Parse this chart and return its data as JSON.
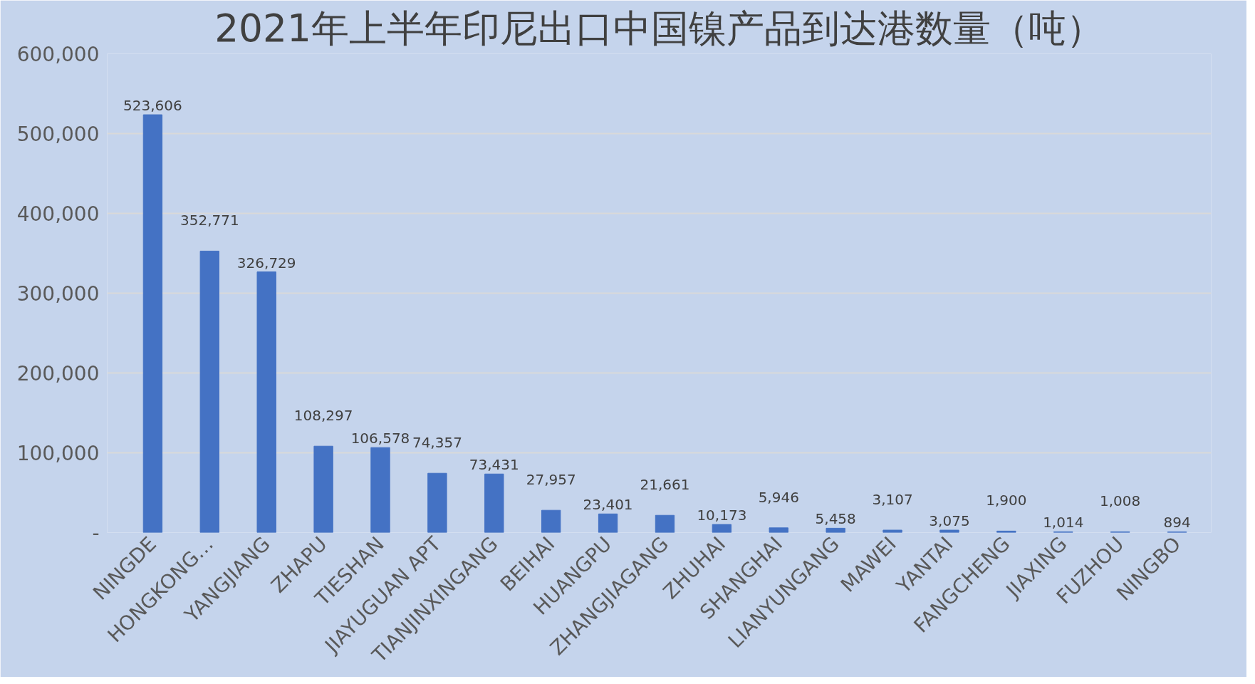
{
  "chart_data": {
    "type": "bar",
    "title": "2021年上半年印尼出口中国镍产品到达港数量（吨）",
    "categories": [
      "NINGDE",
      "HONGKONG…",
      "YANGJIANG",
      "ZHAPU",
      "TIESHAN",
      "JIAYUGUAN APT",
      "TIANJINXINGANG",
      "BEIHAI",
      "HUANGPU",
      "ZHANGJIAGANG",
      "ZHUHAI",
      "SHANGHAI",
      "LIANYUNGANG",
      "MAWEI",
      "YANTAI",
      "FANGCHENG",
      "JIAXING",
      "FUZHOU",
      "NINGBO"
    ],
    "values": [
      523606,
      352771,
      326729,
      108297,
      106578,
      74357,
      73431,
      27957,
      23401,
      21661,
      10173,
      5946,
      5458,
      3107,
      3075,
      1900,
      1014,
      1008,
      894
    ],
    "value_labels": [
      "523,606",
      "352,771",
      "326,729",
      "108,297",
      "106,578",
      "74,357",
      "73,431",
      "27,957",
      "23,401",
      "21,661",
      "10,173",
      "5,946",
      "5,458",
      "3,107",
      "3,075",
      "1,900",
      "1,014",
      "1,008",
      "894"
    ],
    "color": "#4472c4",
    "ylim": [
      0,
      600000
    ],
    "yticks": [
      {
        "value": 0,
        "label": "-"
      },
      {
        "value": 100000,
        "label": "100,000"
      },
      {
        "value": 200000,
        "label": "200,000"
      },
      {
        "value": 300000,
        "label": "300,000"
      },
      {
        "value": 400000,
        "label": "400,000"
      },
      {
        "value": 500000,
        "label": "500,000"
      },
      {
        "value": 600000,
        "label": "600,000"
      }
    ],
    "grid": "y"
  }
}
